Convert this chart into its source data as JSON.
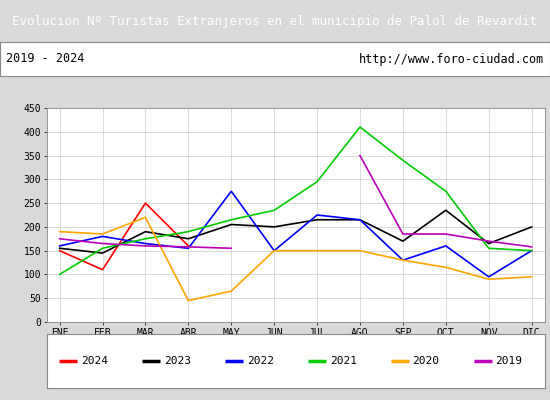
{
  "title": "Evolucion Nº Turistas Extranjeros en el municipio de Palol de Revardit",
  "subtitle_left": "2019 - 2024",
  "subtitle_right": "http://www.foro-ciudad.com",
  "x_labels": [
    "ENE",
    "FEB",
    "MAR",
    "ABR",
    "MAY",
    "JUN",
    "JUL",
    "AGO",
    "SEP",
    "OCT",
    "NOV",
    "DIC"
  ],
  "ylim": [
    0,
    450
  ],
  "yticks": [
    0,
    50,
    100,
    150,
    200,
    250,
    300,
    350,
    400,
    450
  ],
  "series": {
    "2024": {
      "data": [
        150,
        110,
        250,
        160,
        null,
        null,
        null,
        null,
        null,
        null,
        null,
        null
      ],
      "color": "#ff0000"
    },
    "2023": {
      "data": [
        155,
        145,
        190,
        175,
        205,
        200,
        215,
        215,
        170,
        235,
        165,
        200
      ],
      "color": "#000000"
    },
    "2022": {
      "data": [
        160,
        180,
        165,
        155,
        275,
        150,
        225,
        215,
        130,
        160,
        95,
        150
      ],
      "color": "#0000ff"
    },
    "2021": {
      "data": [
        100,
        155,
        175,
        190,
        215,
        235,
        295,
        410,
        340,
        275,
        155,
        150
      ],
      "color": "#00cc00"
    },
    "2020": {
      "data": [
        190,
        185,
        220,
        45,
        65,
        150,
        150,
        150,
        130,
        115,
        90,
        95
      ],
      "color": "#ffa500"
    },
    "2019": {
      "data": [
        175,
        165,
        160,
        158,
        155,
        null,
        null,
        350,
        185,
        185,
        170,
        158
      ],
      "color": "#bb00bb"
    }
  },
  "legend_order": [
    "2024",
    "2023",
    "2022",
    "2021",
    "2020",
    "2019"
  ],
  "title_bg_color": "#4472c4",
  "title_text_color": "#ffffff",
  "outer_bg_color": "#d9d9d9",
  "plot_bg_color": "#e8e8e8",
  "inner_bg_color": "#ffffff",
  "grid_color": "#cccccc",
  "border_color": "#888888"
}
